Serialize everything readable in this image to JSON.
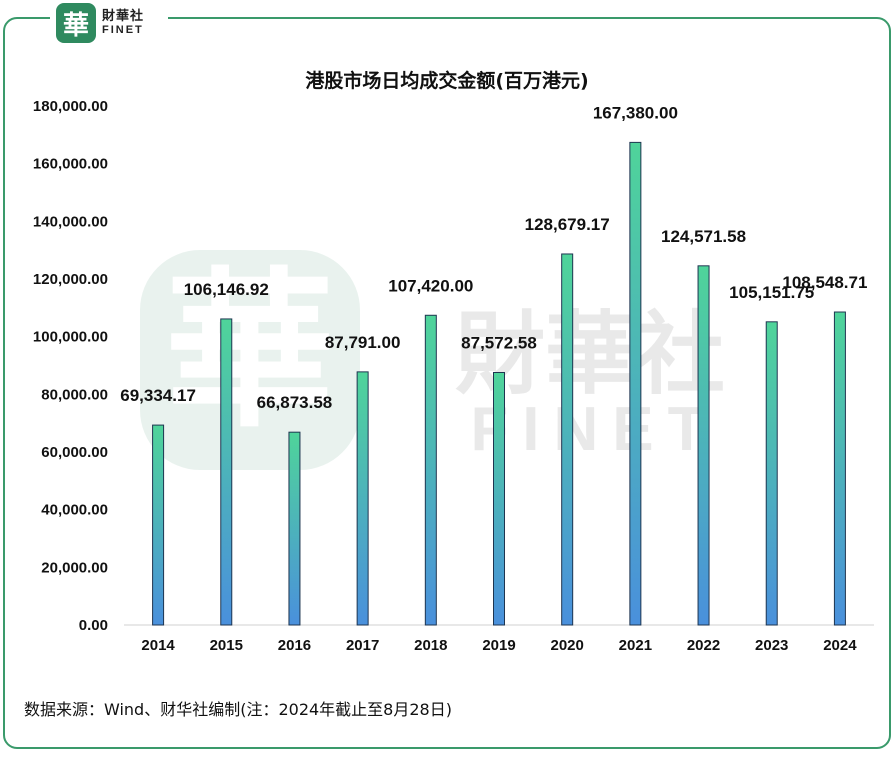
{
  "brand": {
    "logo_glyph": "華",
    "name_cn": "財華社",
    "name_en": "FINET",
    "accent_color": "#2f8a5f"
  },
  "source_note": "数据来源：Wind、财华社编制(注：2024年截止至8月28日)",
  "chart_data": {
    "type": "bar",
    "title": "港股市场日均成交金额(百万港元)",
    "categories": [
      "2014",
      "2015",
      "2016",
      "2017",
      "2018",
      "2019",
      "2020",
      "2021",
      "2022",
      "2023",
      "2024"
    ],
    "values": [
      69334.17,
      106146.92,
      66873.58,
      87791.0,
      107420.0,
      87572.58,
      128679.17,
      167380.0,
      124571.58,
      105151.75,
      108548.71
    ],
    "data_labels": [
      "69,334.17",
      "106,146.92",
      "66,873.58",
      "87,791.00",
      "107,420.00",
      "87,572.58",
      "128,679.17",
      "167,380.00",
      "124,571.58",
      "105,151.75",
      "108,548.71"
    ],
    "y_ticks": [
      "0.00",
      "20,000.00",
      "40,000.00",
      "60,000.00",
      "80,000.00",
      "100,000.00",
      "120,000.00",
      "140,000.00",
      "160,000.00",
      "180,000.00"
    ],
    "ylim": [
      0,
      180000
    ],
    "grid": false,
    "bar_gradient": {
      "top": "#4fd49a",
      "bottom": "#4a90dc"
    },
    "bar_stroke": "#1e3550"
  }
}
